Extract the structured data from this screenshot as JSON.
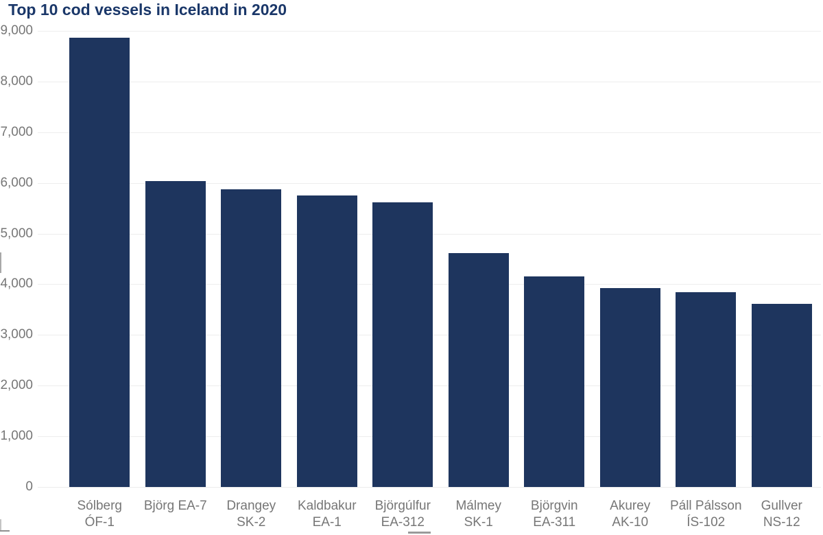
{
  "page": {
    "title": "Top 10 cod vessels in Iceland in 2020"
  },
  "colors": {
    "bar": "#1e355e",
    "title_text": "#1a3769",
    "axis_text": "#767676",
    "gridline": "#ededed",
    "background": "#ffffff"
  },
  "chart_data": {
    "type": "bar",
    "title": "Top 10 cod vessels in Iceland in 2020",
    "categories": [
      "Sólberg ÓF-1",
      "Björg EA-7",
      "Drangey SK-2",
      "Kaldbakur EA-1",
      "Björgúlfur EA-312",
      "Málmey SK-1",
      "Björgvin EA-311",
      "Akurey AK-10",
      "Páll Pálsson ÍS-102",
      "Gullver NS-12"
    ],
    "category_label_lines": [
      [
        "Sólberg",
        "ÓF-1"
      ],
      [
        "Björg EA-7"
      ],
      [
        "Drangey",
        "SK-2"
      ],
      [
        "Kaldbakur",
        "EA-1"
      ],
      [
        "Björgúlfur",
        "EA-312"
      ],
      [
        "Málmey",
        "SK-1"
      ],
      [
        "Björgvin",
        "EA-311"
      ],
      [
        "Akurey",
        "AK-10"
      ],
      [
        "Páll Pálsson",
        "ÍS-102"
      ],
      [
        "Gullver",
        "NS-12"
      ]
    ],
    "values": [
      8860,
      6030,
      5880,
      5750,
      5620,
      4620,
      4150,
      3920,
      3840,
      3610
    ],
    "xlabel": "",
    "ylabel": "",
    "ylim": [
      0,
      9000
    ],
    "yticks": [
      0,
      1000,
      2000,
      3000,
      4000,
      5000,
      6000,
      7000,
      8000,
      9000
    ],
    "ytick_labels": [
      "0",
      "1,000",
      "2,000",
      "3,000",
      "4,000",
      "5,000",
      "6,000",
      "7,000",
      "8,000",
      "9,000"
    ],
    "grid": true,
    "legend": null
  }
}
